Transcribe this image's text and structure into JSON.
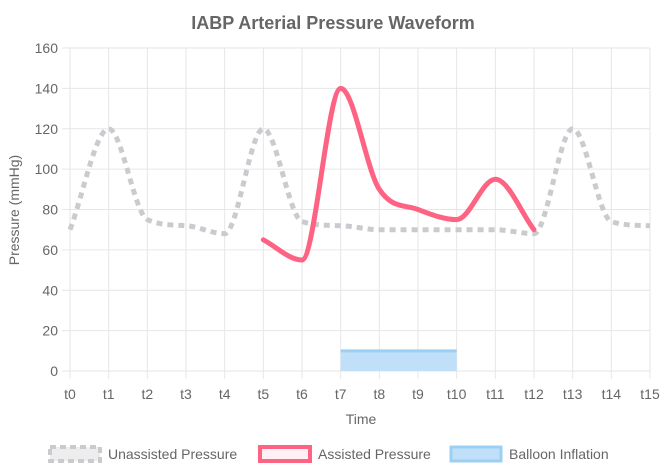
{
  "chart_data": {
    "type": "line",
    "title": "IABP Arterial Pressure Waveform",
    "xlabel": "Time",
    "ylabel": "Pressure (mmHg)",
    "categories": [
      "t0",
      "t1",
      "t2",
      "t3",
      "t4",
      "t5",
      "t6",
      "t7",
      "t8",
      "t9",
      "t10",
      "t11",
      "t12",
      "t13",
      "t14",
      "t15"
    ],
    "ylim": [
      0,
      160
    ],
    "yticks": [
      0,
      20,
      40,
      60,
      80,
      100,
      120,
      140,
      160
    ],
    "grid": true,
    "legend_position": "bottom",
    "series": [
      {
        "name": "Unassisted Pressure",
        "style": "dashed",
        "color": "#c9cbcf",
        "values": [
          70,
          120,
          75,
          72,
          68,
          120,
          74,
          72,
          70,
          70,
          70,
          70,
          68,
          120,
          74,
          72
        ]
      },
      {
        "name": "Assisted Pressure",
        "style": "solid",
        "color": "#ff6384",
        "values": [
          null,
          null,
          null,
          null,
          null,
          65,
          55,
          140,
          90,
          80,
          75,
          95,
          70,
          null,
          null,
          null
        ]
      },
      {
        "name": "Balloon Inflation",
        "style": "area",
        "color": "#36a2eb",
        "fill": "#bfe0f8",
        "values": [
          null,
          null,
          null,
          null,
          null,
          null,
          null,
          10,
          10,
          10,
          10,
          null,
          null,
          null,
          null,
          null
        ]
      }
    ]
  }
}
